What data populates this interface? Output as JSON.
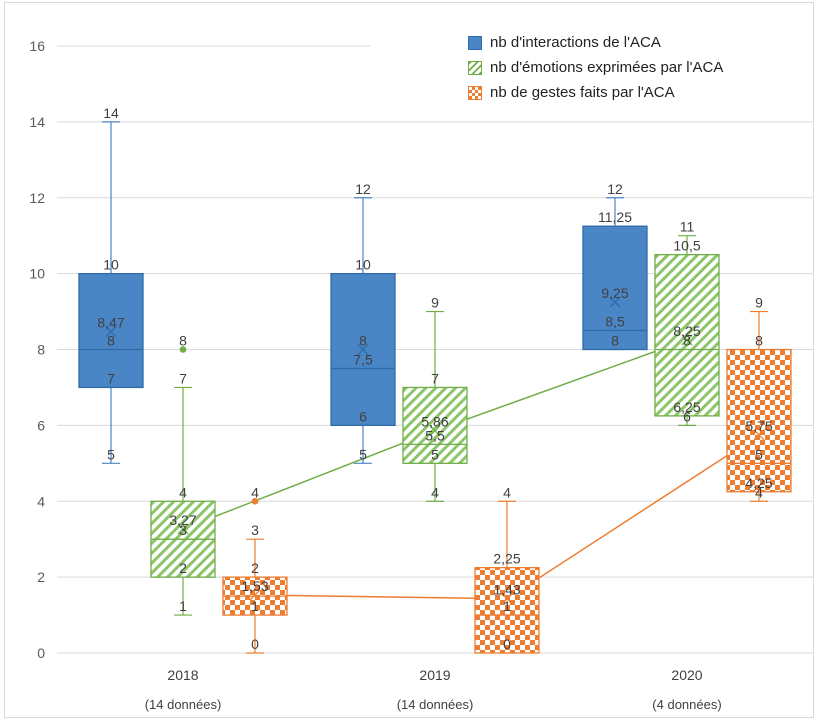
{
  "chart_data": {
    "type": "box",
    "categories": [
      "2018",
      "2019",
      "2020"
    ],
    "category_sublabels": [
      "(14 données)",
      "(14 données)",
      "(4 données)"
    ],
    "ylim": [
      0,
      16
    ],
    "yticks": [
      0,
      2,
      4,
      6,
      8,
      10,
      12,
      14,
      16
    ],
    "grid": true,
    "legend_position": "top-right",
    "series": [
      {
        "name": "nb d'interactions de l'ACA",
        "color": "#4a86c5",
        "fill": "solid",
        "boxes": [
          {
            "min": 5,
            "q1": 7,
            "median": 8,
            "q3": 10,
            "max": 14,
            "mean": 8.47,
            "outliers": [],
            "labels": [
              "14",
              "10",
              "8,47",
              "8",
              "7",
              "5"
            ]
          },
          {
            "min": 5,
            "q1": 6,
            "median": 7.5,
            "q3": 10,
            "max": 12,
            "mean": 8,
            "outliers": [],
            "labels": [
              "12",
              "10",
              "8",
              "7,5",
              "6",
              "5"
            ]
          },
          {
            "min": 8,
            "q1": 8,
            "median": 8.5,
            "q3": 11.25,
            "max": 12,
            "mean": 9.25,
            "outliers": [],
            "labels": [
              "12",
              "11,25",
              "9,25",
              "8,5",
              "8"
            ]
          }
        ]
      },
      {
        "name": "nb d'émotions exprimées par l'ACA",
        "color": "#70ad47",
        "fill": "diagonal-hatch",
        "boxes": [
          {
            "min": 1,
            "q1": 2,
            "median": 3,
            "q3": 4,
            "max": 7,
            "mean": 3.27,
            "outliers": [
              8
            ],
            "labels": [
              "8",
              "7",
              "4",
              "3,27",
              "3",
              "2",
              "1"
            ]
          },
          {
            "min": 4,
            "q1": 5,
            "median": 5.5,
            "q3": 7,
            "max": 9,
            "mean": 5.86,
            "outliers": [],
            "labels": [
              "9",
              "7",
              "5,86",
              "5,5",
              "5",
              "4"
            ]
          },
          {
            "min": 6,
            "q1": 6.25,
            "median": 8,
            "q3": 10.5,
            "max": 11,
            "mean": 8.25,
            "outliers": [],
            "labels": [
              "11",
              "10,5",
              "8,25",
              "8",
              "6,25",
              "6"
            ]
          }
        ]
      },
      {
        "name": "nb de gestes faits par l'ACA",
        "color": "#ed7d31",
        "fill": "checker",
        "boxes": [
          {
            "min": 0,
            "q1": 1,
            "median": 1.5,
            "q3": 2,
            "max": 3,
            "mean": 1.53,
            "outliers": [
              4
            ],
            "labels": [
              "4",
              "3",
              "2",
              "1,53",
              "1",
              "0"
            ]
          },
          {
            "min": 0,
            "q1": 0,
            "median": 1,
            "q3": 2.25,
            "max": 4,
            "mean": 1.43,
            "outliers": [],
            "labels": [
              "4",
              "2,25",
              "1,43",
              "1",
              "0"
            ]
          },
          {
            "min": 4,
            "q1": 4.25,
            "median": 5,
            "q3": 8,
            "max": 9,
            "mean": 5.75,
            "outliers": [],
            "labels": [
              "9",
              "8",
              "5,75",
              "5",
              "4,25",
              "4"
            ]
          }
        ]
      }
    ]
  }
}
